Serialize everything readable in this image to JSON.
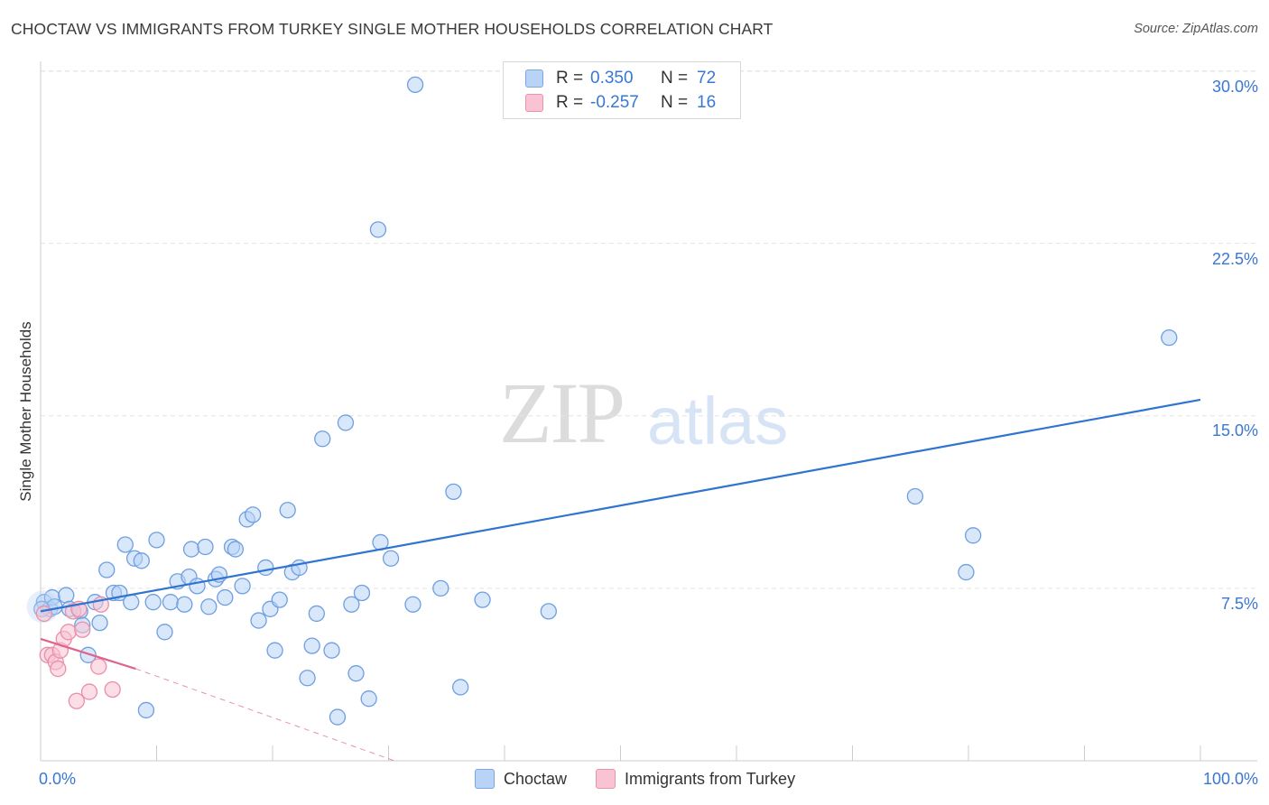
{
  "header": {
    "title": "CHOCTAW VS IMMIGRANTS FROM TURKEY SINGLE MOTHER HOUSEHOLDS CORRELATION CHART",
    "source": "Source: ZipAtlas.com"
  },
  "watermark": {
    "zip": "ZIP",
    "atlas": "atlas"
  },
  "legend": {
    "r_label": "R =",
    "n_label": "N =",
    "rows": [
      {
        "r": "0.350",
        "n": "72"
      },
      {
        "r": "-0.257",
        "n": "16"
      }
    ]
  },
  "bottom_legend": [
    "Choctaw",
    "Immigrants from Turkey"
  ],
  "colors": {
    "blue_fill": "#b8d3f5",
    "blue_stroke": "#6f9fe0",
    "blue_line": "#2f74d0",
    "pink_fill": "#f8c3d2",
    "pink_stroke": "#ea8fab",
    "pink_line": "#e0638c",
    "grid": "#e4e4e4",
    "axis_text": "#3877d4"
  },
  "chart_data": {
    "type": "scatter",
    "title": "CHOCTAW VS IMMIGRANTS FROM TURKEY SINGLE MOTHER HOUSEHOLDS CORRELATION CHART",
    "xlabel": "",
    "ylabel": "Single Mother Households",
    "xlim": [
      0,
      100
    ],
    "ylim": [
      0,
      31.2
    ],
    "x_tick_labels": [
      "0.0%",
      "100.0%"
    ],
    "y_ticks": [
      7.5,
      15.0,
      22.5,
      30.0
    ],
    "y_tick_labels": [
      "7.5%",
      "15.0%",
      "22.5%",
      "30.0%"
    ],
    "series": [
      {
        "name": "Choctaw",
        "r": 0.35,
        "n": 72,
        "trend": {
          "x": [
            0,
            100
          ],
          "y": [
            6.5,
            15.7
          ]
        },
        "points": [
          [
            0.3,
            6.9
          ],
          [
            0.8,
            6.6
          ],
          [
            1.0,
            7.1
          ],
          [
            1.2,
            6.7
          ],
          [
            2.2,
            7.2
          ],
          [
            2.5,
            6.6
          ],
          [
            3.4,
            6.5
          ],
          [
            3.6,
            5.9
          ],
          [
            4.1,
            4.6
          ],
          [
            4.7,
            6.9
          ],
          [
            5.1,
            6.0
          ],
          [
            5.7,
            8.3
          ],
          [
            6.3,
            7.3
          ],
          [
            6.8,
            7.3
          ],
          [
            7.3,
            9.4
          ],
          [
            7.8,
            6.9
          ],
          [
            8.1,
            8.8
          ],
          [
            8.7,
            8.7
          ],
          [
            9.1,
            2.2
          ],
          [
            9.7,
            6.9
          ],
          [
            10.0,
            9.6
          ],
          [
            10.7,
            5.6
          ],
          [
            11.2,
            6.9
          ],
          [
            11.8,
            7.8
          ],
          [
            12.4,
            6.8
          ],
          [
            12.8,
            8.0
          ],
          [
            13.0,
            9.2
          ],
          [
            13.5,
            7.6
          ],
          [
            14.2,
            9.3
          ],
          [
            14.5,
            6.7
          ],
          [
            15.1,
            7.9
          ],
          [
            15.4,
            8.1
          ],
          [
            15.9,
            7.1
          ],
          [
            16.5,
            9.3
          ],
          [
            16.8,
            9.2
          ],
          [
            17.4,
            7.6
          ],
          [
            17.8,
            10.5
          ],
          [
            18.3,
            10.7
          ],
          [
            18.8,
            6.1
          ],
          [
            19.4,
            8.4
          ],
          [
            19.8,
            6.6
          ],
          [
            20.2,
            4.8
          ],
          [
            20.6,
            7.0
          ],
          [
            21.3,
            10.9
          ],
          [
            21.7,
            8.2
          ],
          [
            22.3,
            8.4
          ],
          [
            23.0,
            3.6
          ],
          [
            23.4,
            5.0
          ],
          [
            23.8,
            6.4
          ],
          [
            24.3,
            14.0
          ],
          [
            25.1,
            4.8
          ],
          [
            25.6,
            1.9
          ],
          [
            26.3,
            14.7
          ],
          [
            26.8,
            6.8
          ],
          [
            27.2,
            3.8
          ],
          [
            27.7,
            7.3
          ],
          [
            28.3,
            2.7
          ],
          [
            29.1,
            23.1
          ],
          [
            29.3,
            9.5
          ],
          [
            30.2,
            8.8
          ],
          [
            32.3,
            29.4
          ],
          [
            32.1,
            6.8
          ],
          [
            34.5,
            7.5
          ],
          [
            35.6,
            11.7
          ],
          [
            36.2,
            3.2
          ],
          [
            38.1,
            7.0
          ],
          [
            43.8,
            6.5
          ],
          [
            75.4,
            11.5
          ],
          [
            79.8,
            8.2
          ],
          [
            80.4,
            9.8
          ],
          [
            97.3,
            18.4
          ],
          [
            0.1,
            6.6
          ]
        ]
      },
      {
        "name": "Immigrants from Turkey",
        "r": -0.257,
        "n": 16,
        "trend": {
          "x": [
            0,
            8.2
          ],
          "y": [
            5.3,
            4.0
          ]
        },
        "trend_dashed": {
          "x": [
            8.2,
            30.5
          ],
          "y": [
            4.0,
            0.0
          ]
        },
        "points": [
          [
            0.3,
            6.4
          ],
          [
            0.6,
            4.6
          ],
          [
            1.0,
            4.6
          ],
          [
            1.3,
            4.3
          ],
          [
            1.5,
            4.0
          ],
          [
            1.7,
            4.8
          ],
          [
            2.0,
            5.3
          ],
          [
            2.4,
            5.6
          ],
          [
            2.8,
            6.5
          ],
          [
            3.1,
            2.6
          ],
          [
            3.6,
            5.7
          ],
          [
            4.2,
            3.0
          ],
          [
            5.0,
            4.1
          ],
          [
            5.2,
            6.8
          ],
          [
            6.2,
            3.1
          ],
          [
            3.3,
            6.6
          ]
        ]
      }
    ]
  }
}
